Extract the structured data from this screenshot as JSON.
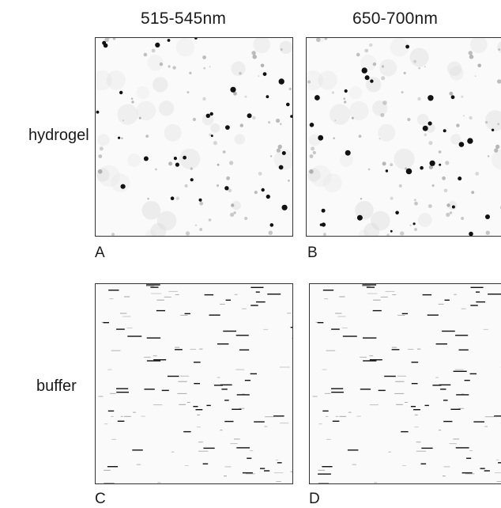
{
  "columns": {
    "left": "515-545nm",
    "right": "650-700nm"
  },
  "rows": {
    "top": "hydrogel",
    "bottom": "buffer"
  },
  "panels": {
    "a": "A",
    "b": "B",
    "c": "C",
    "d": "D"
  }
}
